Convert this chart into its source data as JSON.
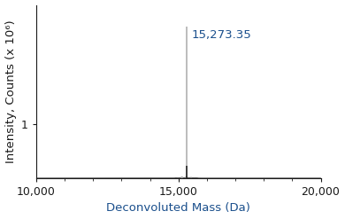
{
  "peak_mass": 15273.35,
  "peak_label": "15,273.35",
  "peak_intensity": 2.8,
  "xlim": [
    10000,
    20000
  ],
  "ylim": [
    0,
    3.2
  ],
  "xticks": [
    10000,
    15000,
    20000
  ],
  "xtick_labels": [
    "10,000",
    "15,000",
    "20,000"
  ],
  "ytick_val": 1.0,
  "ytick_label": "1",
  "xlabel": "Deconvoluted Mass (Da)",
  "ylabel": "Intensity, Counts (x 10⁶)",
  "peak_color_top": "#b0b0b0",
  "peak_color_bottom": "#1a1a1a",
  "text_color": "#1a1a1a",
  "annotation_color": "#1a4f8c",
  "spine_color": "#1a1a1a",
  "background_color": "#ffffff",
  "annotation_fontsize": 9.5,
  "axis_label_fontsize": 9.5,
  "tick_label_fontsize": 9
}
